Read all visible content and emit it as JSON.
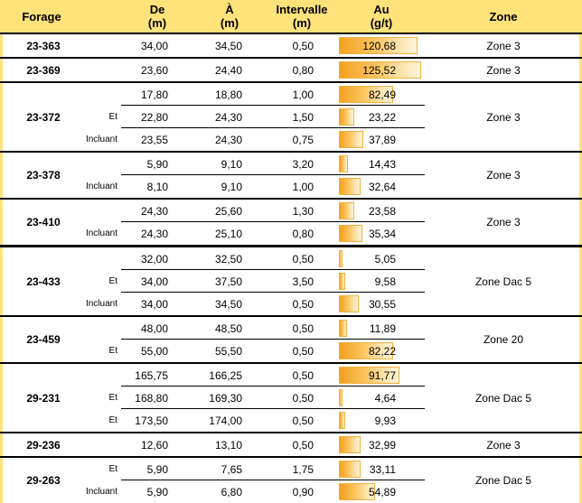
{
  "headers": {
    "forage": "Forage",
    "de": "De",
    "de_unit": "(m)",
    "a": "À",
    "a_unit": "(m)",
    "intervalle": "Intervalle",
    "intervalle_unit": "(m)",
    "au": "Au",
    "au_unit": "(g/t)",
    "zone": "Zone"
  },
  "au_scale_max": 125.52,
  "groups": [
    {
      "forage": "23-363",
      "zone": "Zone 3",
      "rows": [
        {
          "label": "",
          "de": "34,00",
          "a": "34,50",
          "intervalle": "0,50",
          "au": "120,68",
          "au_value": 120.68
        }
      ]
    },
    {
      "forage": "23-369",
      "zone": "Zone 3",
      "rows": [
        {
          "label": "",
          "de": "23,60",
          "a": "24,40",
          "intervalle": "0,80",
          "au": "125,52",
          "au_value": 125.52
        }
      ]
    },
    {
      "forage": "23-372",
      "zone": "Zone 3",
      "rows": [
        {
          "label": "",
          "de": "17,80",
          "a": "18,80",
          "intervalle": "1,00",
          "au": "82,49",
          "au_value": 82.49
        },
        {
          "label": "Et",
          "de": "22,80",
          "a": "24,30",
          "intervalle": "1,50",
          "au": "23,22",
          "au_value": 23.22
        },
        {
          "label": "Incluant",
          "de": "23,55",
          "a": "24,30",
          "intervalle": "0,75",
          "au": "37,89",
          "au_value": 37.89
        }
      ]
    },
    {
      "forage": "23-378",
      "zone": "Zone 3",
      "rows": [
        {
          "label": "",
          "de": "5,90",
          "a": "9,10",
          "intervalle": "3,20",
          "au": "14,43",
          "au_value": 14.43
        },
        {
          "label": "Incluant",
          "de": "8,10",
          "a": "9,10",
          "intervalle": "1,00",
          "au": "32,64",
          "au_value": 32.64
        }
      ]
    },
    {
      "forage": "23-410",
      "zone": "Zone 3",
      "rows": [
        {
          "label": "",
          "de": "24,30",
          "a": "25,60",
          "intervalle": "1,30",
          "au": "23,58",
          "au_value": 23.58
        },
        {
          "label": "Incluant",
          "de": "24,30",
          "a": "25,10",
          "intervalle": "0,80",
          "au": "35,34",
          "au_value": 35.34
        }
      ]
    },
    {
      "forage": "23-433",
      "zone": "Zone Dac 5",
      "rows": [
        {
          "label": "",
          "de": "32,00",
          "a": "32,50",
          "intervalle": "0,50",
          "au": "5,05",
          "au_value": 5.05
        },
        {
          "label": "Et",
          "de": "34,00",
          "a": "37,50",
          "intervalle": "3,50",
          "au": "9,58",
          "au_value": 9.58
        },
        {
          "label": "Incluant",
          "de": "34,00",
          "a": "34,50",
          "intervalle": "0,50",
          "au": "30,55",
          "au_value": 30.55
        }
      ]
    },
    {
      "forage": "23-459",
      "zone": "Zone 20",
      "rows": [
        {
          "label": "",
          "de": "48,00",
          "a": "48,50",
          "intervalle": "0,50",
          "au": "11,89",
          "au_value": 11.89
        },
        {
          "label": "Et",
          "de": "55,00",
          "a": "55,50",
          "intervalle": "0,50",
          "au": "82,22",
          "au_value": 82.22
        }
      ]
    },
    {
      "forage": "29-231",
      "zone": "Zone Dac 5",
      "rows": [
        {
          "label": "",
          "de": "165,75",
          "a": "166,25",
          "intervalle": "0,50",
          "au": "91,77",
          "au_value": 91.77
        },
        {
          "label": "Et",
          "de": "168,80",
          "a": "169,30",
          "intervalle": "0,50",
          "au": "4,64",
          "au_value": 4.64
        },
        {
          "label": "Et",
          "de": "173,50",
          "a": "174,00",
          "intervalle": "0,50",
          "au": "9,93",
          "au_value": 9.93
        }
      ]
    },
    {
      "forage": "29-236",
      "zone": "Zone 3",
      "rows": [
        {
          "label": "",
          "de": "12,60",
          "a": "13,10",
          "intervalle": "0,50",
          "au": "32,99",
          "au_value": 32.99
        }
      ]
    },
    {
      "forage": "29-263",
      "zone": "Zone Dac 5",
      "rows": [
        {
          "label": "Et",
          "de": "5,90",
          "a": "7,65",
          "intervalle": "1,75",
          "au": "33,11",
          "au_value": 33.11
        },
        {
          "label": "Incluant",
          "de": "5,90",
          "a": "6,80",
          "intervalle": "0,90",
          "au": "54,89",
          "au_value": 54.89
        }
      ]
    }
  ]
}
